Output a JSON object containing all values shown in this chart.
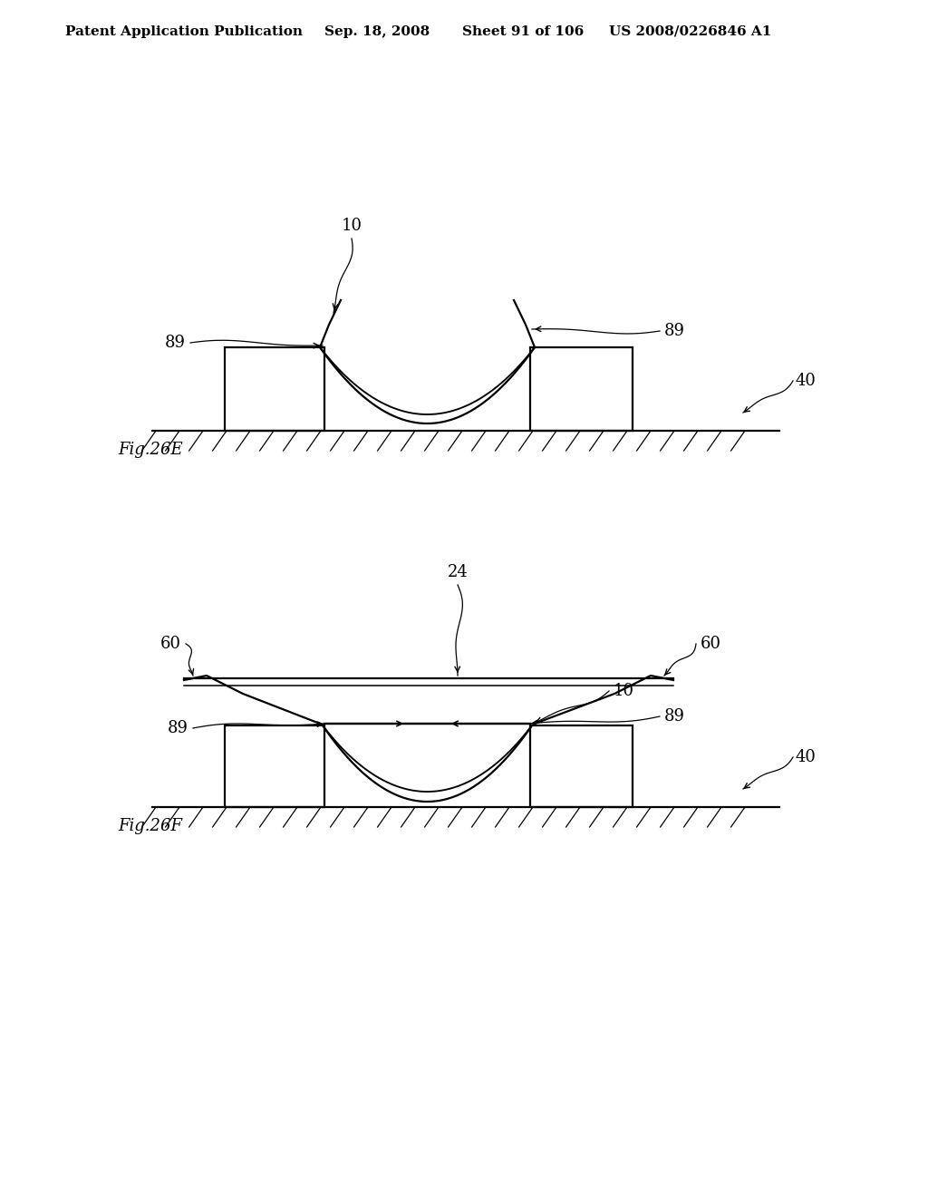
{
  "background_color": "#ffffff",
  "header_text": "Patent Application Publication",
  "header_date": "Sep. 18, 2008",
  "header_sheet": "Sheet 91 of 106",
  "header_patent": "US 2008/0226846 A1",
  "header_fontsize": 11,
  "fig_label_E": "Fig.26E",
  "fig_label_F": "Fig.26F",
  "line_color": "#000000",
  "line_width": 1.6,
  "hatch_color": "#000000"
}
